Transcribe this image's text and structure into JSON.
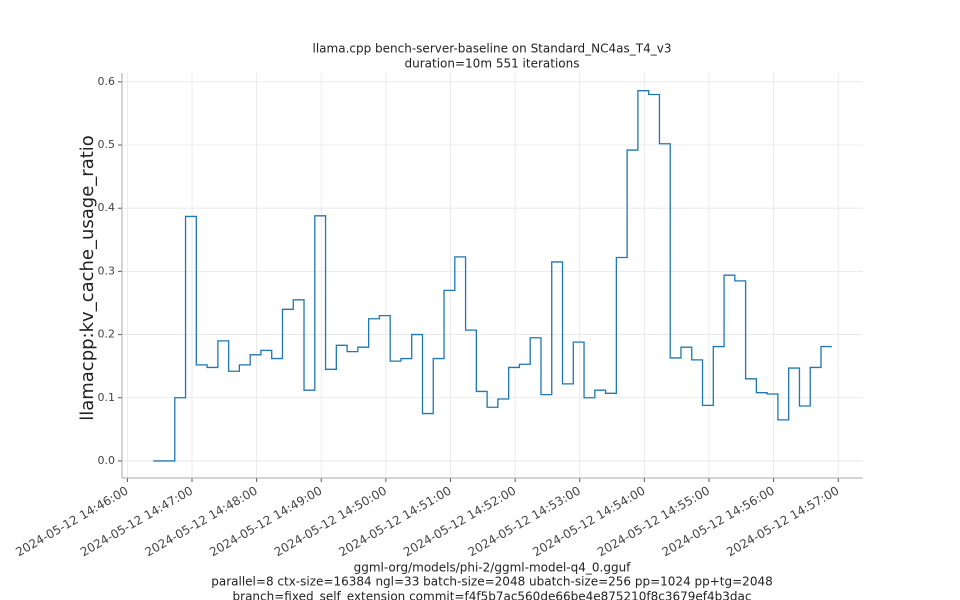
{
  "chart_data": {
    "type": "line",
    "drawstyle": "steps-post",
    "title": [
      "llama.cpp bench-server-baseline on Standard_NC4as_T4_v3",
      "duration=10m 551 iterations"
    ],
    "ylabel": "llamacpp:kv_cache_usage_ratio",
    "xlabel": [
      "ggml-org/models/phi-2/ggml-model-q4_0.gguf",
      "parallel=8 ctx-size=16384 ngl=33 batch-size=2048 ubatch-size=256 pp=1024 pp+tg=2048",
      "branch=fixed_self_extension commit=f4f5b7ac560de66be4e875210f8c3679ef4b3dac"
    ],
    "x": [
      "2024-05-12 14:46:24",
      "2024-05-12 14:46:34",
      "2024-05-12 14:46:44",
      "2024-05-12 14:46:54",
      "2024-05-12 14:47:04",
      "2024-05-12 14:47:14",
      "2024-05-12 14:47:24",
      "2024-05-12 14:47:34",
      "2024-05-12 14:47:44",
      "2024-05-12 14:47:54",
      "2024-05-12 14:48:04",
      "2024-05-12 14:48:14",
      "2024-05-12 14:48:24",
      "2024-05-12 14:48:34",
      "2024-05-12 14:48:44",
      "2024-05-12 14:48:54",
      "2024-05-12 14:49:04",
      "2024-05-12 14:49:14",
      "2024-05-12 14:49:24",
      "2024-05-12 14:49:34",
      "2024-05-12 14:49:44",
      "2024-05-12 14:49:54",
      "2024-05-12 14:50:04",
      "2024-05-12 14:50:14",
      "2024-05-12 14:50:24",
      "2024-05-12 14:50:34",
      "2024-05-12 14:50:44",
      "2024-05-12 14:50:54",
      "2024-05-12 14:51:04",
      "2024-05-12 14:51:14",
      "2024-05-12 14:51:24",
      "2024-05-12 14:51:34",
      "2024-05-12 14:51:44",
      "2024-05-12 14:51:54",
      "2024-05-12 14:52:04",
      "2024-05-12 14:52:14",
      "2024-05-12 14:52:24",
      "2024-05-12 14:52:34",
      "2024-05-12 14:52:44",
      "2024-05-12 14:52:54",
      "2024-05-12 14:53:04",
      "2024-05-12 14:53:14",
      "2024-05-12 14:53:24",
      "2024-05-12 14:53:34",
      "2024-05-12 14:53:44",
      "2024-05-12 14:53:54",
      "2024-05-12 14:54:04",
      "2024-05-12 14:54:14",
      "2024-05-12 14:54:24",
      "2024-05-12 14:54:34",
      "2024-05-12 14:54:44",
      "2024-05-12 14:54:54",
      "2024-05-12 14:55:04",
      "2024-05-12 14:55:14",
      "2024-05-12 14:55:24",
      "2024-05-12 14:55:34",
      "2024-05-12 14:55:44",
      "2024-05-12 14:55:54",
      "2024-05-12 14:56:04",
      "2024-05-12 14:56:14",
      "2024-05-12 14:56:24",
      "2024-05-12 14:56:34",
      "2024-05-12 14:56:44",
      "2024-05-12 14:56:54"
    ],
    "series": [
      {
        "color": "#1f77b4",
        "values": [
          0,
          0,
          0.1,
          0.387,
          0.152,
          0.148,
          0.19,
          0.142,
          0.152,
          0.168,
          0.175,
          0.162,
          0.24,
          0.255,
          0.112,
          0.388,
          0.145,
          0.183,
          0.173,
          0.18,
          0.225,
          0.23,
          0.158,
          0.162,
          0.2,
          0.075,
          0.162,
          0.27,
          0.323,
          0.207,
          0.11,
          0.085,
          0.098,
          0.148,
          0.153,
          0.195,
          0.105,
          0.315,
          0.122,
          0.188,
          0.1,
          0.112,
          0.107,
          0.322,
          0.492,
          0.586,
          0.58,
          0.502,
          0.163,
          0.18,
          0.16,
          0.088,
          0.181,
          0.294,
          0.285,
          0.13,
          0.108,
          0.106,
          0.065,
          0.147,
          0.087,
          0.148,
          0.181,
          0.181
        ]
      }
    ],
    "xlim": [
      "2024-05-12 14:45:55",
      "2024-05-12 14:57:23"
    ],
    "xticks": [
      "2024-05-12 14:46:00",
      "2024-05-12 14:47:00",
      "2024-05-12 14:48:00",
      "2024-05-12 14:49:00",
      "2024-05-12 14:50:00",
      "2024-05-12 14:51:00",
      "2024-05-12 14:52:00",
      "2024-05-12 14:53:00",
      "2024-05-12 14:54:00",
      "2024-05-12 14:55:00",
      "2024-05-12 14:56:00",
      "2024-05-12 14:57:00"
    ],
    "ylim": [
      -0.027,
      0.614
    ],
    "yticks": [
      {
        "value": 0,
        "label": "0.0"
      },
      0.1,
      0.2,
      0.3,
      0.4,
      0.5,
      0.6
    ],
    "grid": true
  }
}
